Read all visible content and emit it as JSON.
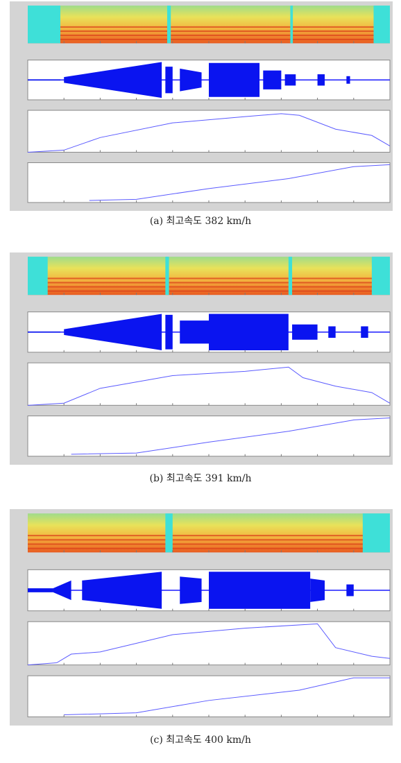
{
  "figures": [
    {
      "caption": "(a) 최고속도 382 km/h"
    },
    {
      "caption": "(b) 최고속도 391 km/h"
    },
    {
      "caption": "(c) 최고속도 400 km/h"
    }
  ]
}
